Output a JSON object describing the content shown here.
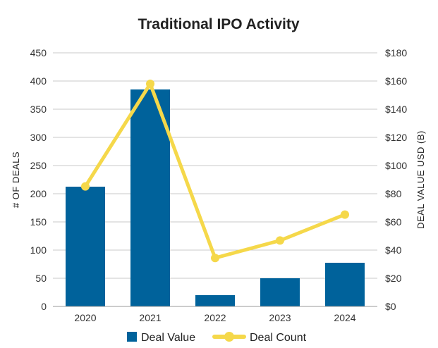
{
  "chart_data": {
    "type": "bar",
    "title": "Traditional IPO Activity",
    "categories": [
      "2020",
      "2021",
      "2022",
      "2023",
      "2024"
    ],
    "series": [
      {
        "name": "Deal Value",
        "type": "bar",
        "axis": "right",
        "values": [
          85,
          154,
          8,
          20,
          31
        ],
        "color": "#00629b"
      },
      {
        "name": "Deal Count",
        "type": "line",
        "axis": "left",
        "values": [
          213,
          395,
          86,
          117,
          163
        ],
        "color": "#f5d84a"
      }
    ],
    "y_left": {
      "label": "# OF DEALS",
      "lim": [
        0,
        450
      ],
      "ticks": [
        "0",
        "50",
        "100",
        "150",
        "200",
        "250",
        "300",
        "350",
        "400",
        "450"
      ]
    },
    "y_right": {
      "label": "DEAL VALUE USD (B)",
      "lim": [
        0,
        180
      ],
      "ticks": [
        "$0",
        "$20",
        "$40",
        "$60",
        "$80",
        "$100",
        "$120",
        "$140",
        "$160",
        "$180"
      ]
    },
    "grid": true,
    "legend": "bottom-center"
  }
}
